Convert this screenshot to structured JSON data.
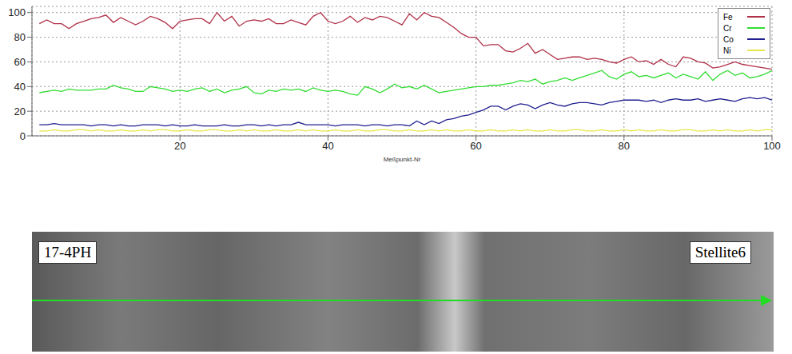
{
  "chart_data": {
    "type": "line",
    "x_label": "Meßpunkt-Nr",
    "x": [
      1,
      2,
      3,
      4,
      5,
      6,
      7,
      8,
      9,
      10,
      11,
      12,
      13,
      14,
      15,
      16,
      17,
      18,
      19,
      20,
      21,
      22,
      23,
      24,
      25,
      26,
      27,
      28,
      29,
      30,
      31,
      32,
      33,
      34,
      35,
      36,
      37,
      38,
      39,
      40,
      41,
      42,
      43,
      44,
      45,
      46,
      47,
      48,
      49,
      50,
      51,
      52,
      53,
      54,
      55,
      56,
      57,
      58,
      59,
      60,
      61,
      62,
      63,
      64,
      65,
      66,
      67,
      68,
      69,
      70,
      71,
      72,
      73,
      74,
      75,
      76,
      77,
      78,
      79,
      80,
      81,
      82,
      83,
      84,
      85,
      86,
      87,
      88,
      89,
      90,
      91,
      92,
      93,
      94,
      95,
      96,
      97,
      98,
      99,
      100
    ],
    "xlim": [
      0,
      100
    ],
    "xticks": [
      20,
      40,
      60,
      80,
      100
    ],
    "ylim": [
      0,
      105
    ],
    "yticks": [
      0,
      20,
      40,
      60,
      80,
      100
    ],
    "grid": true,
    "legend": "upper right",
    "series": [
      {
        "name": "Fe",
        "color": "#b03048",
        "values": [
          91,
          94,
          91,
          91,
          87,
          91,
          93,
          95,
          96,
          98,
          92,
          96,
          93,
          90,
          93,
          97,
          95,
          92,
          87,
          93,
          94,
          95,
          95,
          91,
          100,
          93,
          97,
          89,
          93,
          94,
          93,
          95,
          91,
          91,
          94,
          92,
          90,
          97,
          100,
          93,
          91,
          93,
          97,
          92,
          96,
          94,
          97,
          96,
          93,
          90,
          99,
          94,
          100,
          97,
          96,
          92,
          88,
          83,
          80,
          80,
          73,
          74,
          74,
          69,
          68,
          71,
          75,
          67,
          70,
          66,
          62,
          63,
          64,
          64,
          62,
          63,
          62,
          60,
          59,
          62,
          64,
          60,
          61,
          58,
          62,
          58,
          56,
          64,
          63,
          60,
          59,
          55,
          56,
          58,
          60,
          58,
          57,
          56,
          55,
          54
        ]
      },
      {
        "name": "Cr",
        "color": "#33dd33",
        "values": [
          35,
          36,
          37,
          36,
          38,
          37,
          37,
          37,
          38,
          38,
          41,
          39,
          38,
          36,
          36,
          40,
          39,
          38,
          36,
          37,
          36,
          38,
          39,
          36,
          38,
          35,
          37,
          38,
          40,
          35,
          34,
          37,
          36,
          38,
          37,
          38,
          36,
          39,
          37,
          36,
          37,
          36,
          34,
          33,
          40,
          38,
          35,
          38,
          42,
          39,
          40,
          38,
          41,
          38,
          35,
          36,
          37,
          38,
          39,
          40,
          40,
          41,
          41,
          42,
          43,
          45,
          44,
          46,
          42,
          44,
          45,
          47,
          45,
          47,
          49,
          51,
          53,
          48,
          46,
          50,
          52,
          48,
          49,
          47,
          49,
          51,
          47,
          50,
          48,
          46,
          52,
          45,
          50,
          53,
          49,
          51,
          47,
          48,
          50,
          53
        ]
      },
      {
        "name": "Co",
        "color": "#202090",
        "values": [
          9,
          9,
          10,
          9,
          9,
          9,
          9,
          8,
          9,
          9,
          8,
          9,
          8,
          8,
          9,
          9,
          9,
          8,
          9,
          8,
          8,
          9,
          8,
          8,
          8,
          9,
          8,
          8,
          9,
          9,
          8,
          9,
          8,
          9,
          9,
          11,
          9,
          9,
          9,
          9,
          8,
          9,
          9,
          9,
          8,
          9,
          9,
          8,
          9,
          9,
          8,
          12,
          9,
          12,
          10,
          13,
          14,
          16,
          17,
          19,
          21,
          24,
          24,
          21,
          24,
          26,
          25,
          22,
          25,
          27,
          25,
          24,
          26,
          27,
          27,
          26,
          25,
          27,
          28,
          29,
          29,
          29,
          28,
          29,
          27,
          29,
          30,
          29,
          29,
          30,
          28,
          29,
          30,
          29,
          28,
          30,
          31,
          30,
          31,
          29
        ]
      },
      {
        "name": "Ni",
        "color": "#e6e64c",
        "values": [
          4,
          4,
          5,
          4,
          4,
          5,
          5,
          4,
          5,
          4,
          4,
          5,
          4,
          4,
          5,
          4,
          5,
          5,
          4,
          4,
          5,
          4,
          4,
          5,
          5,
          4,
          4,
          5,
          4,
          5,
          4,
          4,
          5,
          4,
          4,
          5,
          4,
          5,
          4,
          4,
          5,
          4,
          4,
          5,
          4,
          4,
          5,
          5,
          4,
          4,
          5,
          4,
          4,
          5,
          4,
          5,
          4,
          4,
          5,
          4,
          4,
          5,
          4,
          4,
          5,
          4,
          5,
          4,
          4,
          5,
          4,
          4,
          5,
          5,
          4,
          4,
          5,
          4,
          4,
          5,
          4,
          5,
          4,
          4,
          5,
          4,
          4,
          5,
          5,
          4,
          4,
          5,
          4,
          5,
          4,
          4,
          5,
          4,
          5,
          5
        ]
      }
    ]
  },
  "micrograph": {
    "left_label": "17-4PH",
    "right_label": "Stellite6"
  }
}
